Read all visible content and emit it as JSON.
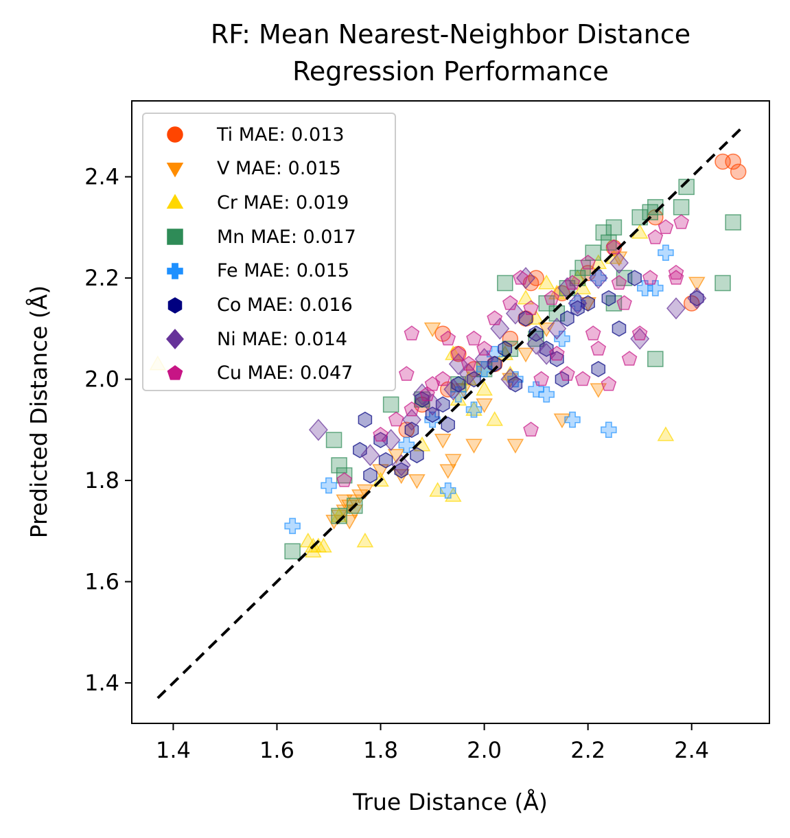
{
  "chart_data": {
    "type": "scatter",
    "title": "RF: Mean Nearest-Neighbor Distance",
    "subtitle": "Regression Performance",
    "xlabel": "True Distance (Å)",
    "ylabel": "Predicted Distance (Å)",
    "xlim": [
      1.32,
      2.55
    ],
    "ylim": [
      1.32,
      2.55
    ],
    "xticks": [
      "1.4",
      "1.6",
      "1.8",
      "2.0",
      "2.2",
      "2.4"
    ],
    "yticks": [
      "1.4",
      "1.6",
      "1.8",
      "2.0",
      "2.2",
      "2.4"
    ],
    "legend_position": "top-left",
    "grid": false,
    "reference_line": {
      "style": "dashed",
      "color": "#000000",
      "from": [
        1.37,
        1.37
      ],
      "to": [
        2.5,
        2.5
      ]
    },
    "series": [
      {
        "name": "Ti MAE: 0.013",
        "marker": "circle",
        "color": "#FF4500",
        "points": [
          [
            2.46,
            2.43
          ],
          [
            2.48,
            2.43
          ],
          [
            2.49,
            2.41
          ],
          [
            2.33,
            2.32
          ],
          [
            2.1,
            2.2
          ],
          [
            2.09,
            2.19
          ],
          [
            1.92,
            2.09
          ],
          [
            2.4,
            2.15
          ],
          [
            1.95,
            2.05
          ],
          [
            1.98,
            2.02
          ],
          [
            2.05,
            2.08
          ],
          [
            2.15,
            2.17
          ],
          [
            1.88,
            1.95
          ],
          [
            2.02,
            2.03
          ],
          [
            2.2,
            2.21
          ],
          [
            2.25,
            2.26
          ],
          [
            1.85,
            1.9
          ],
          [
            2.08,
            2.12
          ],
          [
            1.93,
            1.98
          ]
        ]
      },
      {
        "name": "V MAE: 0.015",
        "marker": "triangle-down",
        "color": "#FF8C00",
        "points": [
          [
            1.74,
            1.75
          ],
          [
            1.75,
            1.76
          ],
          [
            1.73,
            1.74
          ],
          [
            1.76,
            1.77
          ],
          [
            1.72,
            1.73
          ],
          [
            1.75,
            1.74
          ],
          [
            1.74,
            1.72
          ],
          [
            1.73,
            1.76
          ],
          [
            1.77,
            1.78
          ],
          [
            1.71,
            1.72
          ],
          [
            1.9,
            2.1
          ],
          [
            2.41,
            2.19
          ],
          [
            2.22,
            1.98
          ],
          [
            1.93,
            1.82
          ],
          [
            1.87,
            1.8
          ],
          [
            1.84,
            1.81
          ],
          [
            1.98,
            1.87
          ],
          [
            2.06,
            1.87
          ],
          [
            1.94,
            1.84
          ],
          [
            2.15,
            1.92
          ],
          [
            2.0,
            1.95
          ],
          [
            1.92,
            1.88
          ],
          [
            2.05,
            2.0
          ],
          [
            1.83,
            1.85
          ],
          [
            2.12,
            2.1
          ],
          [
            2.2,
            2.15
          ],
          [
            1.96,
            1.98
          ],
          [
            2.08,
            2.05
          ],
          [
            1.8,
            1.82
          ],
          [
            2.26,
            2.24
          ]
        ]
      },
      {
        "name": "Cr MAE: 0.019",
        "marker": "triangle-up",
        "color": "#FFD700",
        "points": [
          [
            1.37,
            2.03
          ],
          [
            1.67,
            1.67
          ],
          [
            1.68,
            1.67
          ],
          [
            1.66,
            1.68
          ],
          [
            1.67,
            1.66
          ],
          [
            1.69,
            1.67
          ],
          [
            1.72,
            1.73
          ],
          [
            1.77,
            1.68
          ],
          [
            1.91,
            1.78
          ],
          [
            1.94,
            1.77
          ],
          [
            2.35,
            1.89
          ],
          [
            2.3,
            2.29
          ],
          [
            2.19,
            2.18
          ],
          [
            2.12,
            2.19
          ],
          [
            2.14,
            2.17
          ],
          [
            2.05,
            2.01
          ],
          [
            1.98,
            1.94
          ],
          [
            2.02,
            1.92
          ],
          [
            2.08,
            2.16
          ],
          [
            2.0,
            1.98
          ],
          [
            1.95,
            1.96
          ],
          [
            1.88,
            1.87
          ],
          [
            1.8,
            1.8
          ],
          [
            2.25,
            2.24
          ],
          [
            2.22,
            2.23
          ],
          [
            1.94,
            2.05
          ],
          [
            2.04,
            2.05
          ],
          [
            1.97,
            2.0
          ],
          [
            2.1,
            2.12
          ],
          [
            2.18,
            2.2
          ]
        ]
      },
      {
        "name": "Mn MAE: 0.017",
        "marker": "square",
        "color": "#2E8B57",
        "points": [
          [
            1.63,
            1.66
          ],
          [
            1.72,
            1.73
          ],
          [
            1.73,
            1.81
          ],
          [
            1.72,
            1.83
          ],
          [
            1.71,
            1.88
          ],
          [
            1.75,
            1.75
          ],
          [
            2.46,
            2.19
          ],
          [
            2.48,
            2.31
          ],
          [
            2.39,
            2.38
          ],
          [
            2.38,
            2.34
          ],
          [
            2.32,
            2.33
          ],
          [
            2.3,
            2.32
          ],
          [
            2.33,
            2.34
          ],
          [
            2.25,
            2.3
          ],
          [
            2.24,
            2.27
          ],
          [
            2.23,
            2.29
          ],
          [
            2.21,
            2.25
          ],
          [
            2.19,
            2.22
          ],
          [
            2.16,
            2.18
          ],
          [
            2.04,
            2.19
          ],
          [
            2.33,
            2.04
          ],
          [
            2.14,
            2.13
          ],
          [
            2.27,
            2.2
          ],
          [
            2.25,
            2.15
          ],
          [
            1.82,
            1.95
          ],
          [
            1.88,
            1.96
          ],
          [
            2.0,
            2.02
          ],
          [
            2.1,
            2.08
          ],
          [
            1.95,
            1.99
          ],
          [
            2.05,
            2.06
          ],
          [
            2.12,
            2.15
          ],
          [
            2.18,
            2.2
          ]
        ]
      },
      {
        "name": "Fe MAE: 0.015",
        "marker": "plus",
        "color": "#1E90FF",
        "points": [
          [
            1.63,
            1.71
          ],
          [
            1.7,
            1.79
          ],
          [
            1.93,
            1.78
          ],
          [
            2.17,
            1.92
          ],
          [
            2.24,
            1.9
          ],
          [
            2.31,
            2.18
          ],
          [
            2.33,
            2.18
          ],
          [
            2.35,
            2.25
          ],
          [
            2.15,
            2.08
          ],
          [
            2.12,
            1.97
          ],
          [
            1.98,
            1.94
          ],
          [
            2.1,
            1.98
          ],
          [
            2.02,
            2.05
          ],
          [
            1.95,
            1.97
          ],
          [
            2.18,
            2.15
          ],
          [
            2.06,
            2.0
          ],
          [
            1.9,
            1.92
          ],
          [
            1.85,
            1.87
          ],
          [
            2.22,
            2.2
          ],
          [
            2.0,
            2.02
          ]
        ]
      },
      {
        "name": "Co MAE: 0.016",
        "marker": "hexagon",
        "color": "#000080",
        "points": [
          [
            1.84,
            1.82
          ],
          [
            1.78,
            1.81
          ],
          [
            1.76,
            1.86
          ],
          [
            1.77,
            1.92
          ],
          [
            1.8,
            1.88
          ],
          [
            1.81,
            1.84
          ],
          [
            1.86,
            1.9
          ],
          [
            1.9,
            1.93
          ],
          [
            1.88,
            1.96
          ],
          [
            1.92,
            1.95
          ],
          [
            1.95,
            1.99
          ],
          [
            1.98,
            2.0
          ],
          [
            2.02,
            2.03
          ],
          [
            2.06,
            1.99
          ],
          [
            2.1,
            2.09
          ],
          [
            2.12,
            2.06
          ],
          [
            2.14,
            2.04
          ],
          [
            2.16,
            2.12
          ],
          [
            2.18,
            2.14
          ],
          [
            2.2,
            2.15
          ],
          [
            2.22,
            2.02
          ],
          [
            2.24,
            2.16
          ],
          [
            2.29,
            2.2
          ],
          [
            2.41,
            2.16
          ],
          [
            2.26,
            2.1
          ],
          [
            2.15,
            2.0
          ],
          [
            2.08,
            2.12
          ],
          [
            2.04,
            2.06
          ],
          [
            1.93,
            1.91
          ],
          [
            1.87,
            1.85
          ]
        ]
      },
      {
        "name": "Ni MAE: 0.014",
        "marker": "diamond",
        "color": "#663399",
        "points": [
          [
            1.68,
            1.9
          ],
          [
            1.84,
            1.83
          ],
          [
            1.78,
            1.85
          ],
          [
            1.82,
            1.88
          ],
          [
            1.86,
            1.92
          ],
          [
            1.9,
            1.95
          ],
          [
            1.94,
            1.98
          ],
          [
            1.97,
            2.01
          ],
          [
            2.0,
            2.04
          ],
          [
            2.03,
            2.1
          ],
          [
            2.06,
            2.13
          ],
          [
            2.08,
            2.2
          ],
          [
            2.1,
            2.07
          ],
          [
            2.14,
            2.1
          ],
          [
            2.18,
            2.15
          ],
          [
            2.22,
            2.2
          ],
          [
            2.26,
            2.23
          ],
          [
            2.3,
            2.08
          ],
          [
            2.37,
            2.14
          ],
          [
            2.41,
            2.16
          ],
          [
            2.12,
            2.05
          ],
          [
            2.05,
            2.0
          ],
          [
            1.95,
            2.03
          ],
          [
            1.88,
            1.97
          ],
          [
            2.16,
            2.18
          ]
        ]
      },
      {
        "name": "Cu MAE: 0.047",
        "marker": "pentagon",
        "color": "#C71585",
        "points": [
          [
            1.73,
            1.8
          ],
          [
            1.85,
            2.01
          ],
          [
            1.86,
            2.09
          ],
          [
            1.93,
            2.08
          ],
          [
            2.09,
            1.9
          ],
          [
            2.16,
            2.01
          ],
          [
            2.21,
            2.09
          ],
          [
            2.24,
            1.99
          ],
          [
            2.28,
            2.04
          ],
          [
            2.3,
            2.09
          ],
          [
            2.32,
            2.2
          ],
          [
            2.35,
            2.3
          ],
          [
            2.38,
            2.31
          ],
          [
            2.37,
            2.21
          ],
          [
            2.37,
            2.2
          ],
          [
            2.27,
            2.15
          ],
          [
            2.22,
            2.06
          ],
          [
            2.19,
            2.0
          ],
          [
            2.14,
            2.05
          ],
          [
            2.11,
            2.0
          ],
          [
            2.07,
            2.2
          ],
          [
            2.05,
            2.15
          ],
          [
            2.02,
            2.12
          ],
          [
            1.98,
            2.08
          ],
          [
            1.95,
            2.05
          ],
          [
            1.92,
            2.0
          ],
          [
            1.89,
            1.97
          ],
          [
            1.86,
            1.94
          ],
          [
            1.83,
            1.92
          ],
          [
            1.8,
            1.89
          ],
          [
            2.25,
            2.26
          ],
          [
            2.2,
            2.23
          ],
          [
            2.17,
            2.19
          ],
          [
            2.13,
            2.16
          ],
          [
            2.09,
            2.14
          ],
          [
            2.0,
            2.06
          ],
          [
            1.97,
            2.03
          ],
          [
            1.9,
            1.99
          ],
          [
            2.33,
            2.28
          ],
          [
            2.26,
            2.19
          ]
        ]
      }
    ]
  }
}
